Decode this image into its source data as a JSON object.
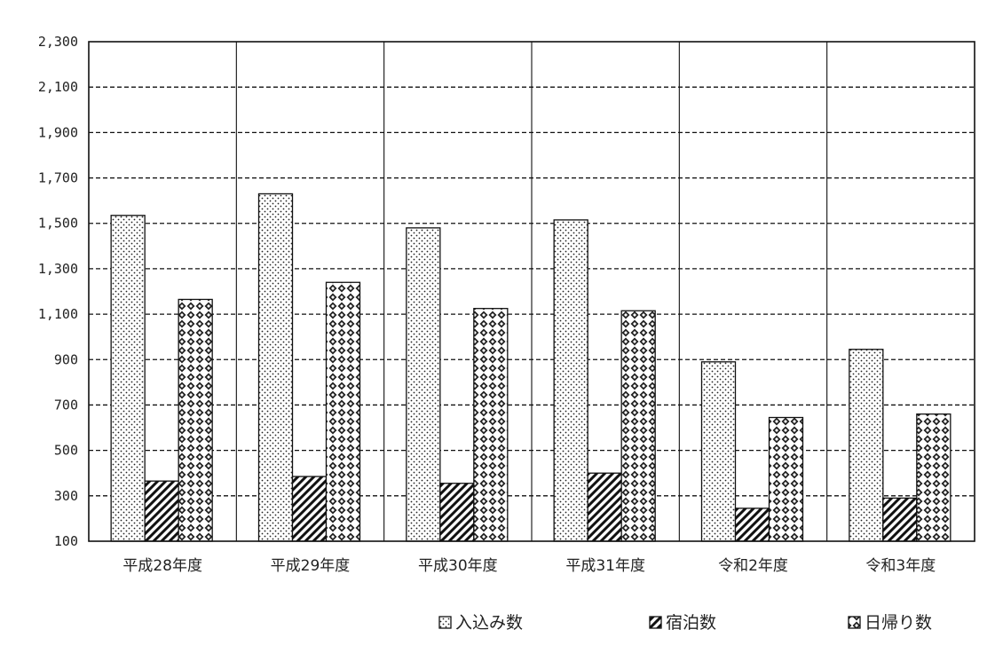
{
  "chart_data": {
    "type": "bar",
    "title": "",
    "xlabel": "",
    "ylabel": "",
    "categories": [
      "平成28年度",
      "平成29年度",
      "平成30年度",
      "平成31年度",
      "令和2年度",
      "令和3年度"
    ],
    "series": [
      {
        "name": "入込み数",
        "values": [
          1535,
          1630,
          1480,
          1515,
          890,
          945
        ],
        "pattern": "dots"
      },
      {
        "name": "宿泊数",
        "values": [
          365,
          385,
          355,
          400,
          245,
          290
        ],
        "pattern": "diagonal-hatch"
      },
      {
        "name": "日帰り数",
        "values": [
          1165,
          1240,
          1125,
          1115,
          645,
          660
        ],
        "pattern": "diamond-checker"
      }
    ],
    "ylim": [
      100,
      2300
    ],
    "yticks": [
      100,
      300,
      500,
      700,
      900,
      1100,
      1300,
      1500,
      1700,
      1900,
      2100,
      2300
    ],
    "ytick_labels": [
      "100",
      "300",
      "500",
      "700",
      "900",
      "1,100",
      "1,300",
      "1,500",
      "1,700",
      "1,900",
      "2,100",
      "2,300"
    ],
    "grid": {
      "horizontal": "dashed",
      "vertical": "category-separators"
    },
    "legend": {
      "placement": "bottom-right",
      "orientation": "horizontal"
    },
    "colors": {
      "ink": "#111111",
      "background": "#ffffff"
    }
  }
}
